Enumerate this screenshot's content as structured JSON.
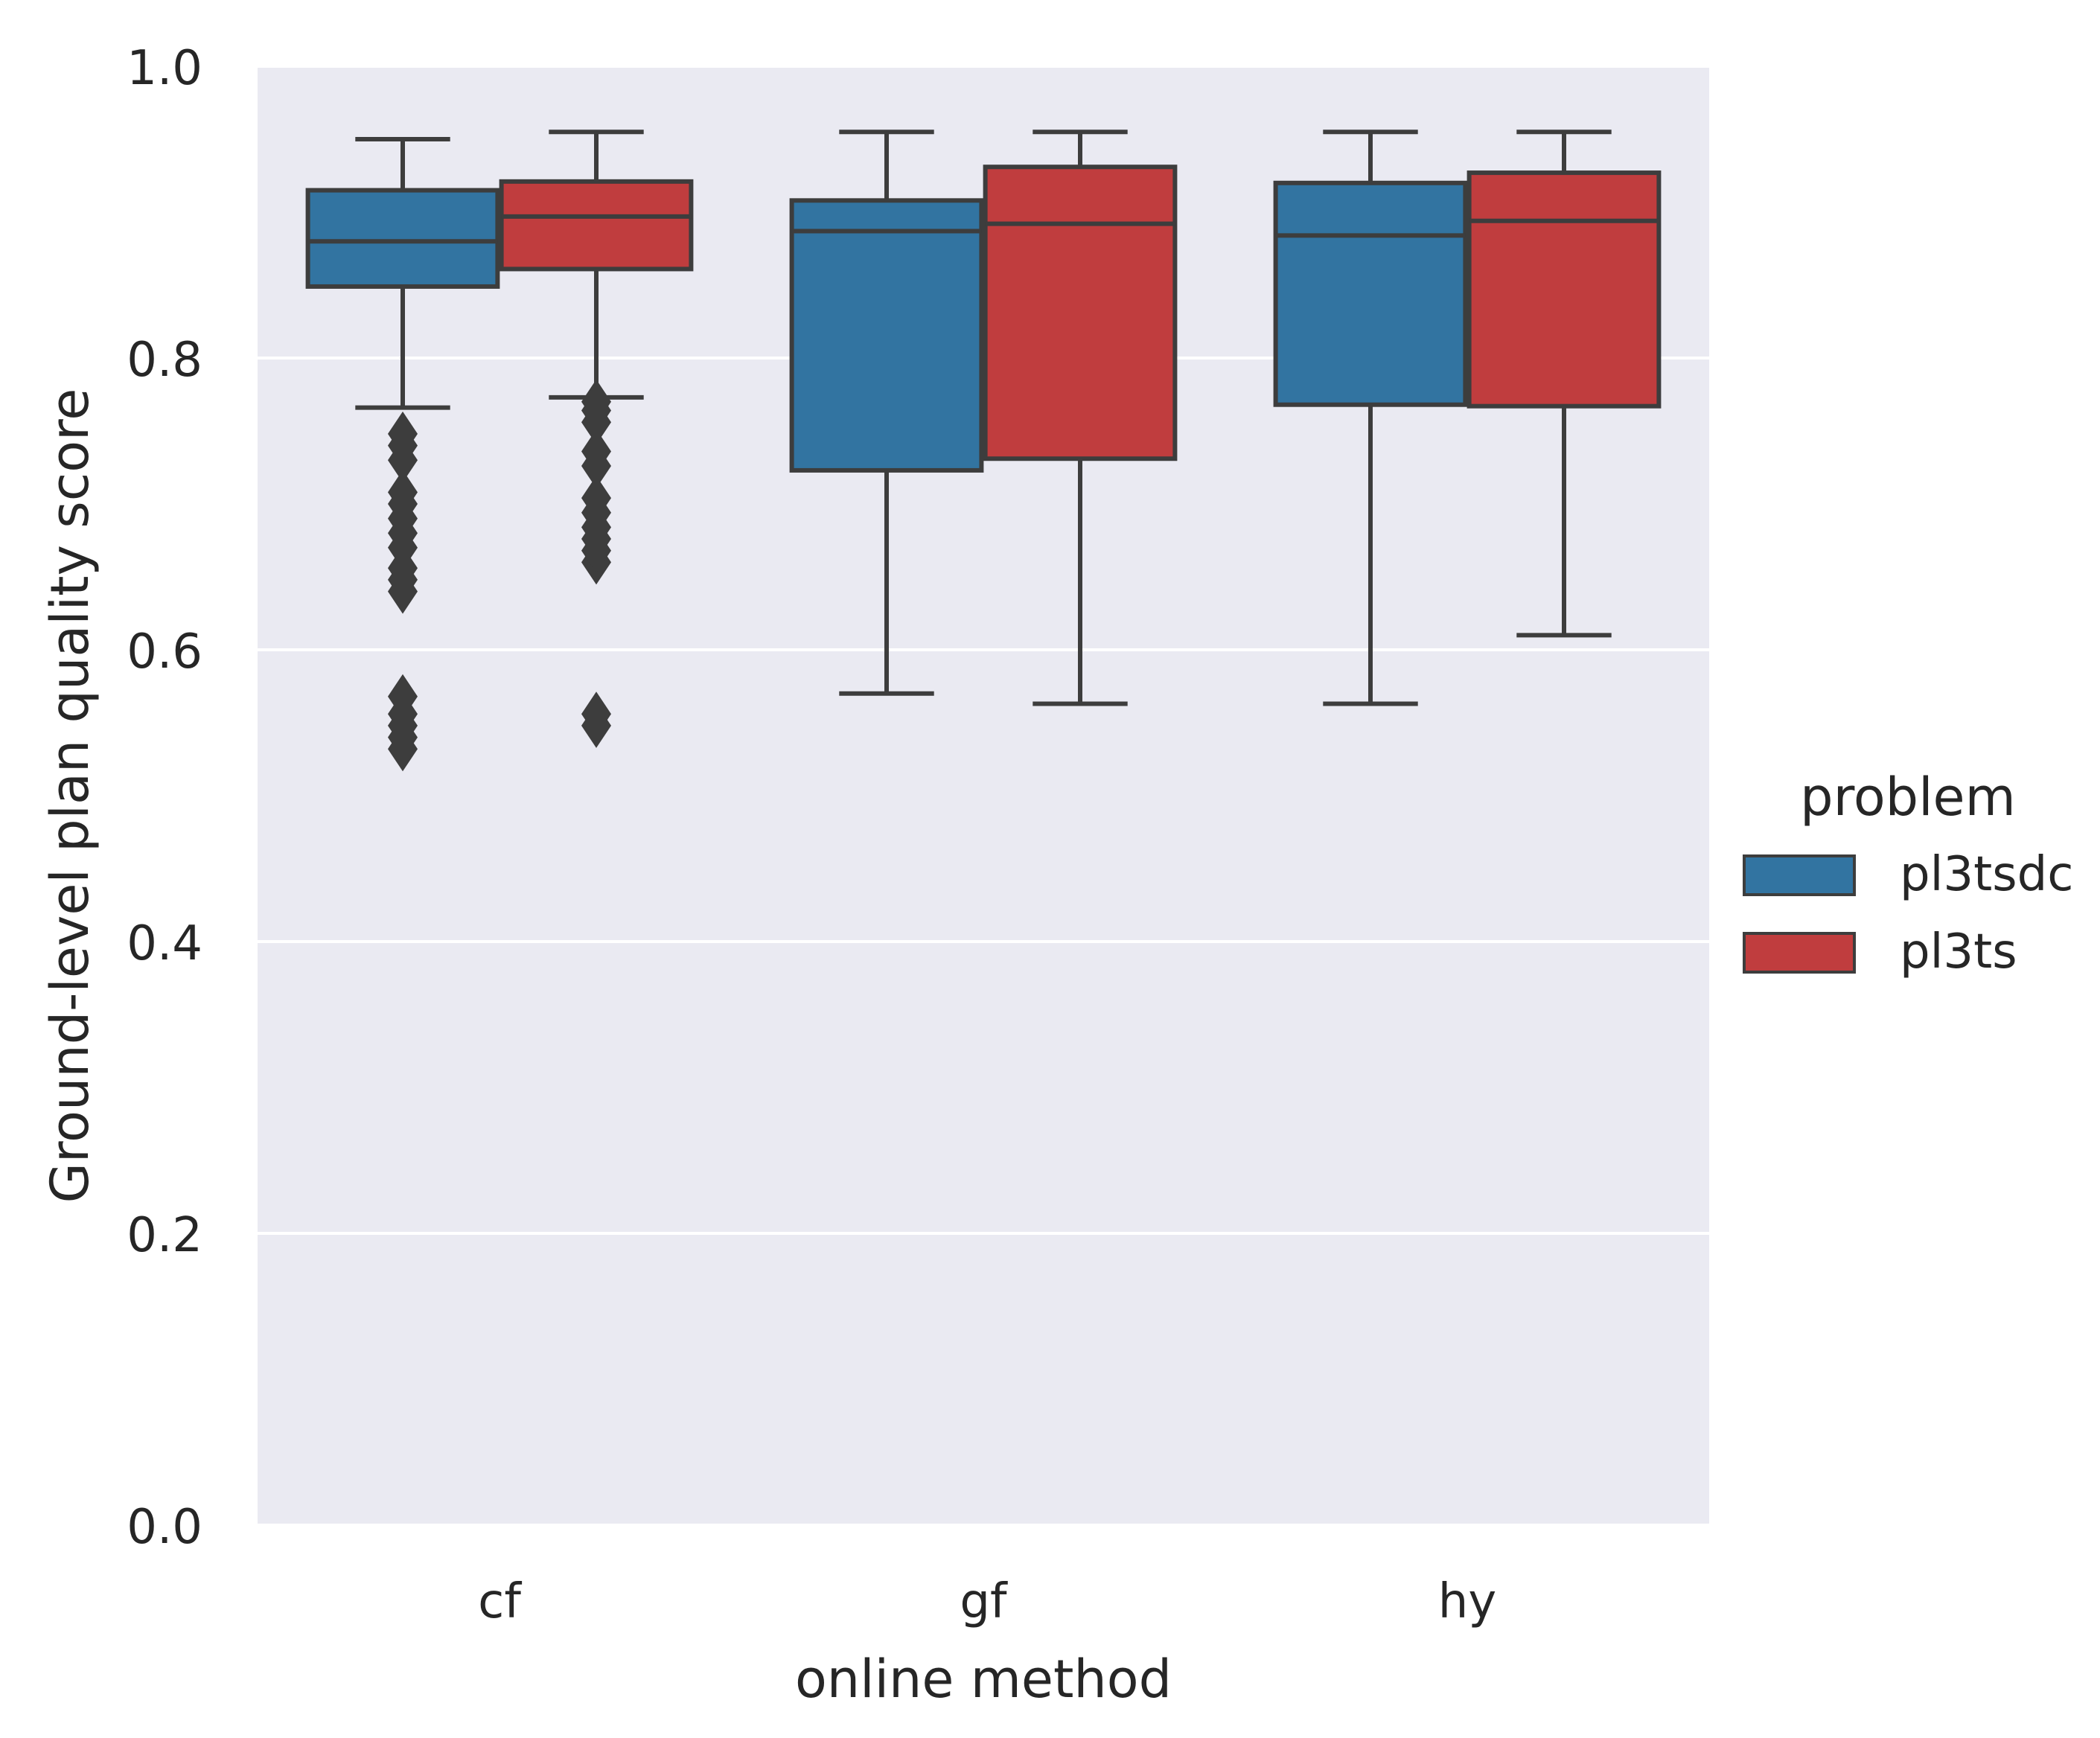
{
  "chart_data": {
    "type": "box",
    "title": "",
    "xlabel": "online method",
    "ylabel": "Ground-level plan quality score",
    "ylim": [
      0.0,
      1.0
    ],
    "yticks": [
      0.0,
      0.2,
      0.4,
      0.6,
      0.8,
      1.0
    ],
    "ytick_labels": [
      "0.0",
      "0.2",
      "0.4",
      "0.6",
      "0.8",
      "1.0"
    ],
    "categories": [
      "cf",
      "gf",
      "hy"
    ],
    "grid": true,
    "legend": {
      "title": "problem",
      "placement": "right"
    },
    "series": [
      {
        "name": "pl3tsdc",
        "color": "#3274a1",
        "boxes": [
          {
            "whislo": 0.766,
            "q1": 0.849,
            "med": 0.88,
            "q3": 0.915,
            "whishi": 0.95,
            "fliers": [
              0.532,
              0.54,
              0.548,
              0.556,
              0.568,
              0.64,
              0.648,
              0.656,
              0.67,
              0.68,
              0.69,
              0.7,
              0.708,
              0.73,
              0.74,
              0.748
            ]
          },
          {
            "whislo": 0.57,
            "q1": 0.723,
            "med": 0.887,
            "q3": 0.908,
            "whishi": 0.955,
            "fliers": []
          },
          {
            "whislo": 0.563,
            "q1": 0.768,
            "med": 0.884,
            "q3": 0.92,
            "whishi": 0.955,
            "fliers": []
          }
        ]
      },
      {
        "name": "pl3ts",
        "color": "#c03d3e",
        "boxes": [
          {
            "whislo": 0.773,
            "q1": 0.861,
            "med": 0.897,
            "q3": 0.921,
            "whishi": 0.955,
            "fliers": [
              0.548,
              0.556,
              0.66,
              0.668,
              0.676,
              0.684,
              0.694,
              0.704,
              0.726,
              0.736,
              0.756,
              0.764,
              0.77
            ]
          },
          {
            "whislo": 0.563,
            "q1": 0.731,
            "med": 0.892,
            "q3": 0.931,
            "whishi": 0.955,
            "fliers": []
          },
          {
            "whislo": 0.61,
            "q1": 0.767,
            "med": 0.894,
            "q3": 0.927,
            "whishi": 0.955,
            "fliers": []
          }
        ]
      }
    ]
  }
}
